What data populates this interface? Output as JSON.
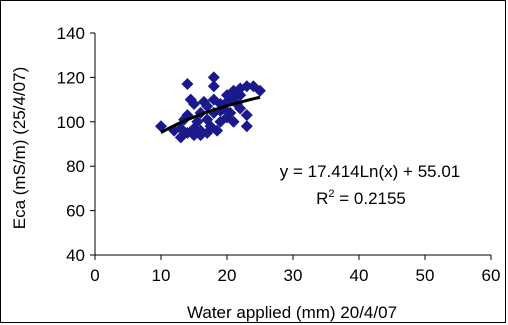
{
  "chart_data": {
    "type": "scatter",
    "title": "",
    "xlabel": "Water applied (mm) 20/4/07",
    "ylabel": "Eca (mS/m) (25/4/07)",
    "xlim": [
      0,
      60
    ],
    "ylim": [
      40,
      140
    ],
    "x_ticks": [
      0,
      10,
      20,
      30,
      40,
      50,
      60
    ],
    "y_ticks": [
      40,
      60,
      80,
      100,
      120,
      140
    ],
    "grid": false,
    "marker_color": "#1a1a8c",
    "trend_color": "#000000",
    "series": [
      {
        "points": [
          [
            10,
            98
          ],
          [
            12,
            96
          ],
          [
            13,
            93
          ],
          [
            13,
            97
          ],
          [
            13.5,
            101
          ],
          [
            14,
            117
          ],
          [
            14,
            95
          ],
          [
            14,
            103
          ],
          [
            14.5,
            110
          ],
          [
            15,
            108
          ],
          [
            15,
            97
          ],
          [
            15,
            94
          ],
          [
            15.5,
            100
          ],
          [
            16,
            96
          ],
          [
            16,
            104
          ],
          [
            16,
            94
          ],
          [
            16.5,
            109
          ],
          [
            17,
            107
          ],
          [
            17,
            101
          ],
          [
            17,
            95
          ],
          [
            17.5,
            98
          ],
          [
            18,
            120
          ],
          [
            18,
            116
          ],
          [
            18,
            104
          ],
          [
            18,
            110
          ],
          [
            18.5,
            96
          ],
          [
            19,
            105
          ],
          [
            19,
            108
          ],
          [
            19,
            100
          ],
          [
            19.5,
            106
          ],
          [
            20,
            112
          ],
          [
            20,
            102
          ],
          [
            20,
            109
          ],
          [
            20.5,
            104
          ],
          [
            21,
            111
          ],
          [
            21,
            114
          ],
          [
            21,
            100
          ],
          [
            21.5,
            108
          ],
          [
            22,
            115
          ],
          [
            22,
            106
          ],
          [
            22,
            112
          ],
          [
            23,
            103
          ],
          [
            23,
            98
          ],
          [
            23,
            116
          ],
          [
            24,
            116
          ],
          [
            25,
            114
          ]
        ]
      }
    ],
    "trendline": {
      "type": "logarithmic",
      "a": 17.414,
      "b": 55.01,
      "x_range": [
        10,
        25
      ]
    },
    "annotations": {
      "equation": "y = 17.414Ln(x) + 55.01",
      "r2_prefix": "R",
      "r2_exp": "2",
      "r2_value": " = 0.2155"
    }
  }
}
